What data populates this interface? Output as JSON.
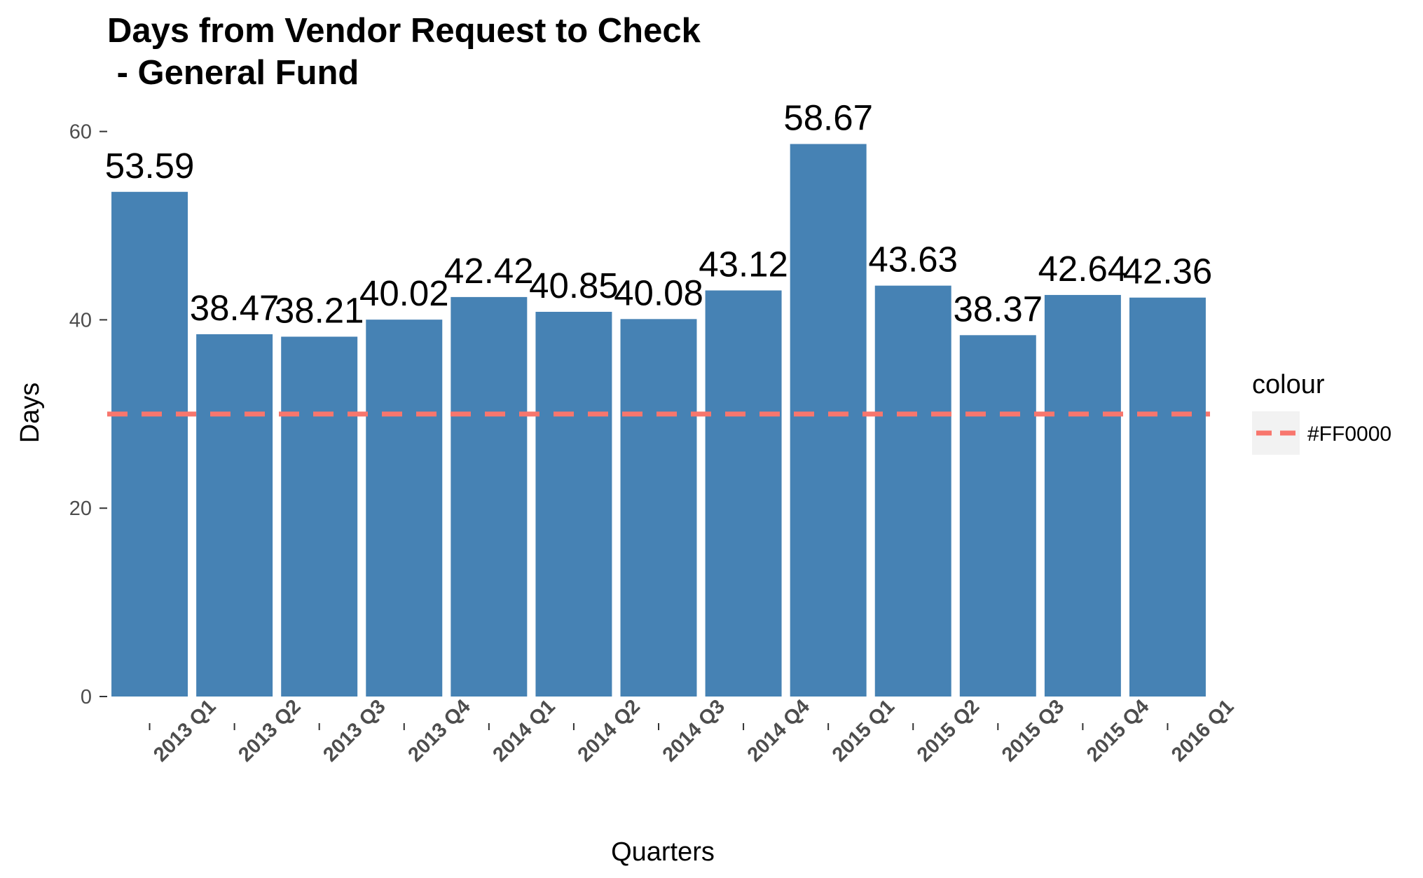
{
  "chart_data": {
    "type": "bar",
    "title_lines": [
      "Days from Vendor Request to Check",
      " - General Fund"
    ],
    "xlabel": "Quarters",
    "ylabel": "Days",
    "categories": [
      "2013 Q1",
      "2013 Q2",
      "2013 Q3",
      "2013 Q4",
      "2014 Q1",
      "2014 Q2",
      "2014 Q3",
      "2014 Q4",
      "2015 Q1",
      "2015 Q2",
      "2015 Q3",
      "2015 Q4",
      "2016 Q1"
    ],
    "values": [
      53.59,
      38.47,
      38.21,
      40.02,
      42.42,
      40.85,
      40.08,
      43.12,
      58.67,
      43.63,
      38.37,
      42.64,
      42.36
    ],
    "data_labels": [
      "53.59",
      "38.47",
      "38.21",
      "40.02",
      "42.42",
      "40.85",
      "40.08",
      "43.12",
      "58.67",
      "43.63",
      "38.37",
      "42.64",
      "42.36"
    ],
    "y_ticks": [
      0,
      20,
      40,
      60
    ],
    "ylim": [
      0,
      60
    ],
    "bar_color": "#4682B4",
    "reference_line": {
      "value": 30,
      "style": "dashed",
      "color": "#F8766D"
    },
    "legend": {
      "title": "colour",
      "entries": [
        "#FF0000"
      ],
      "placement": "right"
    },
    "grid": false
  }
}
